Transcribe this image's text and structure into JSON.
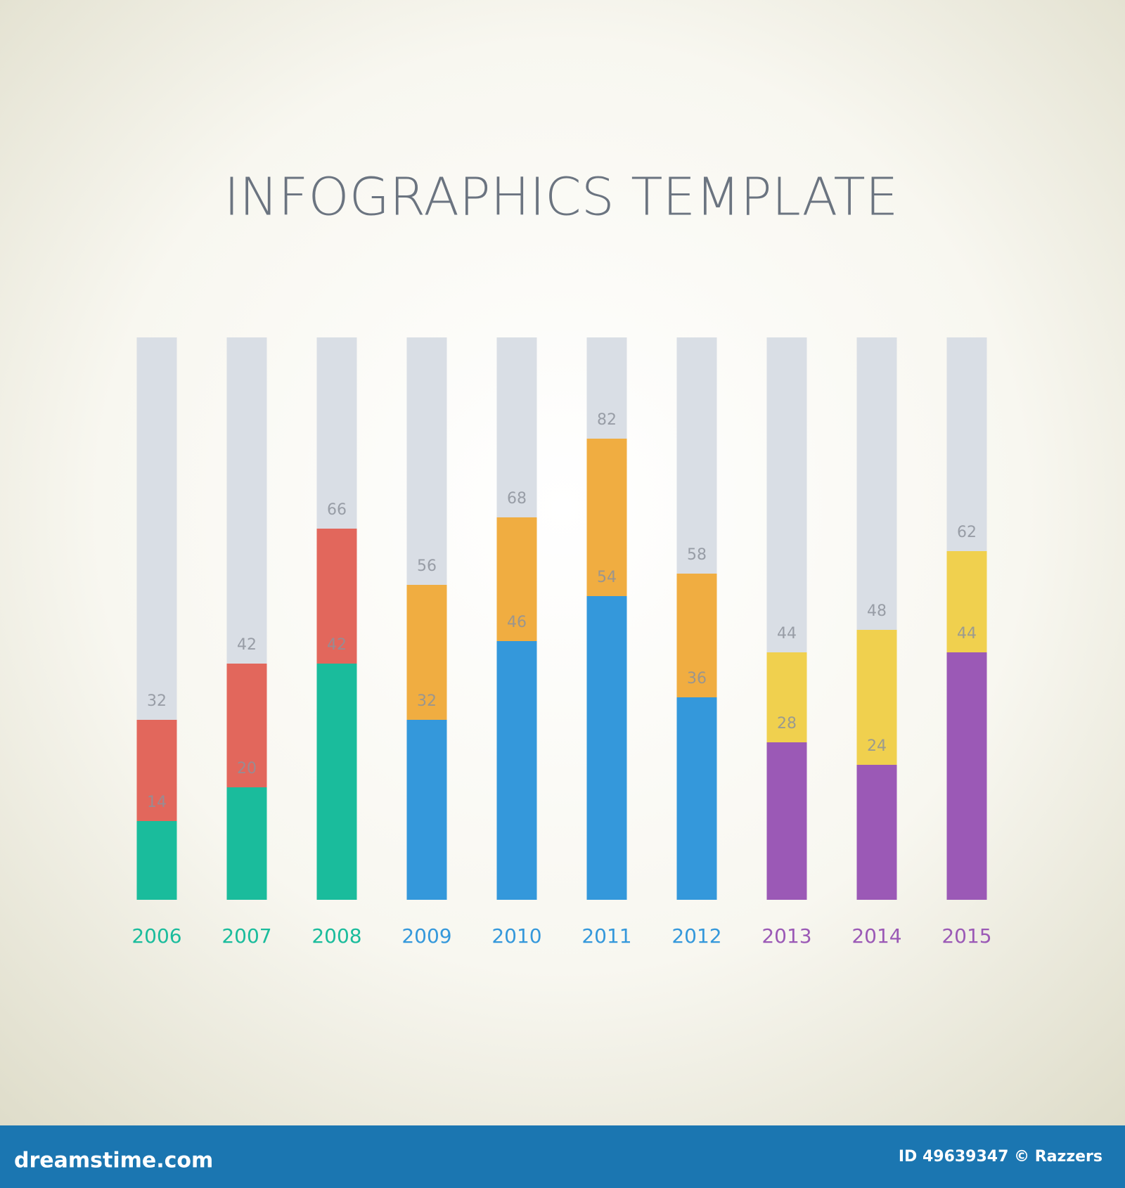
{
  "chart_data": {
    "type": "bar",
    "title": "INFOGRAPHICS   TEMPLATE",
    "categories": [
      "2006",
      "2007",
      "2008",
      "2009",
      "2010",
      "2011",
      "2012",
      "2013",
      "2014",
      "2015"
    ],
    "category_colors": [
      "#1abc9c",
      "#1abc9c",
      "#1abc9c",
      "#3498db",
      "#3498db",
      "#3498db",
      "#3498db",
      "#9b59b6",
      "#9b59b6",
      "#9b59b6"
    ],
    "track_color": "#d9dee5",
    "series": [
      {
        "values": [
          14,
          20,
          42,
          32,
          46,
          54,
          36,
          28,
          24,
          44
        ],
        "colors": [
          "#1abc9c",
          "#1abc9c",
          "#1abc9c",
          "#3498db",
          "#3498db",
          "#3498db",
          "#3498db",
          "#9b59b6",
          "#9b59b6",
          "#9b59b6"
        ]
      },
      {
        "values": [
          32,
          42,
          66,
          56,
          68,
          82,
          58,
          44,
          48,
          62
        ],
        "colors": [
          "#e2675c",
          "#e2675c",
          "#e2675c",
          "#f0ad41",
          "#f0ad41",
          "#f0ad41",
          "#f0ad41",
          "#f0d04e",
          "#f0d04e",
          "#f0d04e"
        ]
      }
    ],
    "ylim": [
      0,
      100
    ]
  },
  "footer": {
    "left": "dreamstime.com",
    "right": "ID 49639347 © Razzers"
  }
}
